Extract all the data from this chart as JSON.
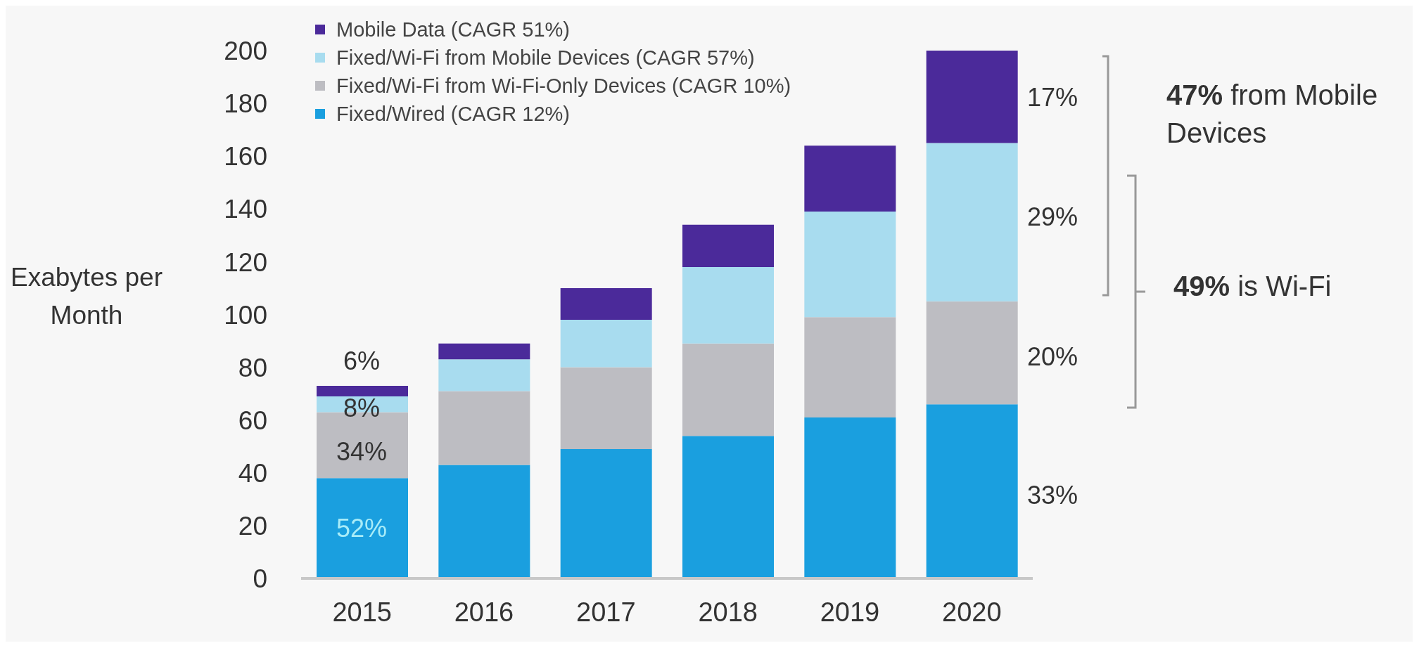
{
  "chart_data": {
    "type": "bar",
    "stacked": true,
    "ylabel": "Exabytes per Month",
    "categories": [
      "2015",
      "2016",
      "2017",
      "2018",
      "2019",
      "2020"
    ],
    "series": [
      {
        "name": "Fixed/Wired (CAGR 12%)",
        "color": "#1a9fdf",
        "values": [
          38,
          43,
          49,
          54,
          61,
          66
        ]
      },
      {
        "name": "Fixed/Wi-Fi from Wi-Fi-Only Devices (CAGR 10%)",
        "color": "#bdbdc2",
        "values": [
          25,
          28,
          31,
          35,
          38,
          39
        ]
      },
      {
        "name": "Fixed/Wi-Fi from Mobile Devices (CAGR 57%)",
        "color": "#a8dcef",
        "values": [
          6,
          12,
          18,
          29,
          40,
          60
        ]
      },
      {
        "name": "Mobile Data (CAGR 51%)",
        "color": "#4b2a9a",
        "values": [
          4,
          6,
          12,
          16,
          25,
          35
        ]
      }
    ],
    "ylim": [
      0,
      200
    ],
    "yticks": [
      0,
      20,
      40,
      60,
      80,
      100,
      120,
      140,
      160,
      180,
      200
    ],
    "grid": false,
    "legend": "top left",
    "annotations": [
      "52%",
      "34%",
      "8%",
      "6%",
      "17%",
      "29%",
      "20%",
      "33%",
      "47% from Mobile Devices",
      "49% is Wi-Fi"
    ]
  }
}
